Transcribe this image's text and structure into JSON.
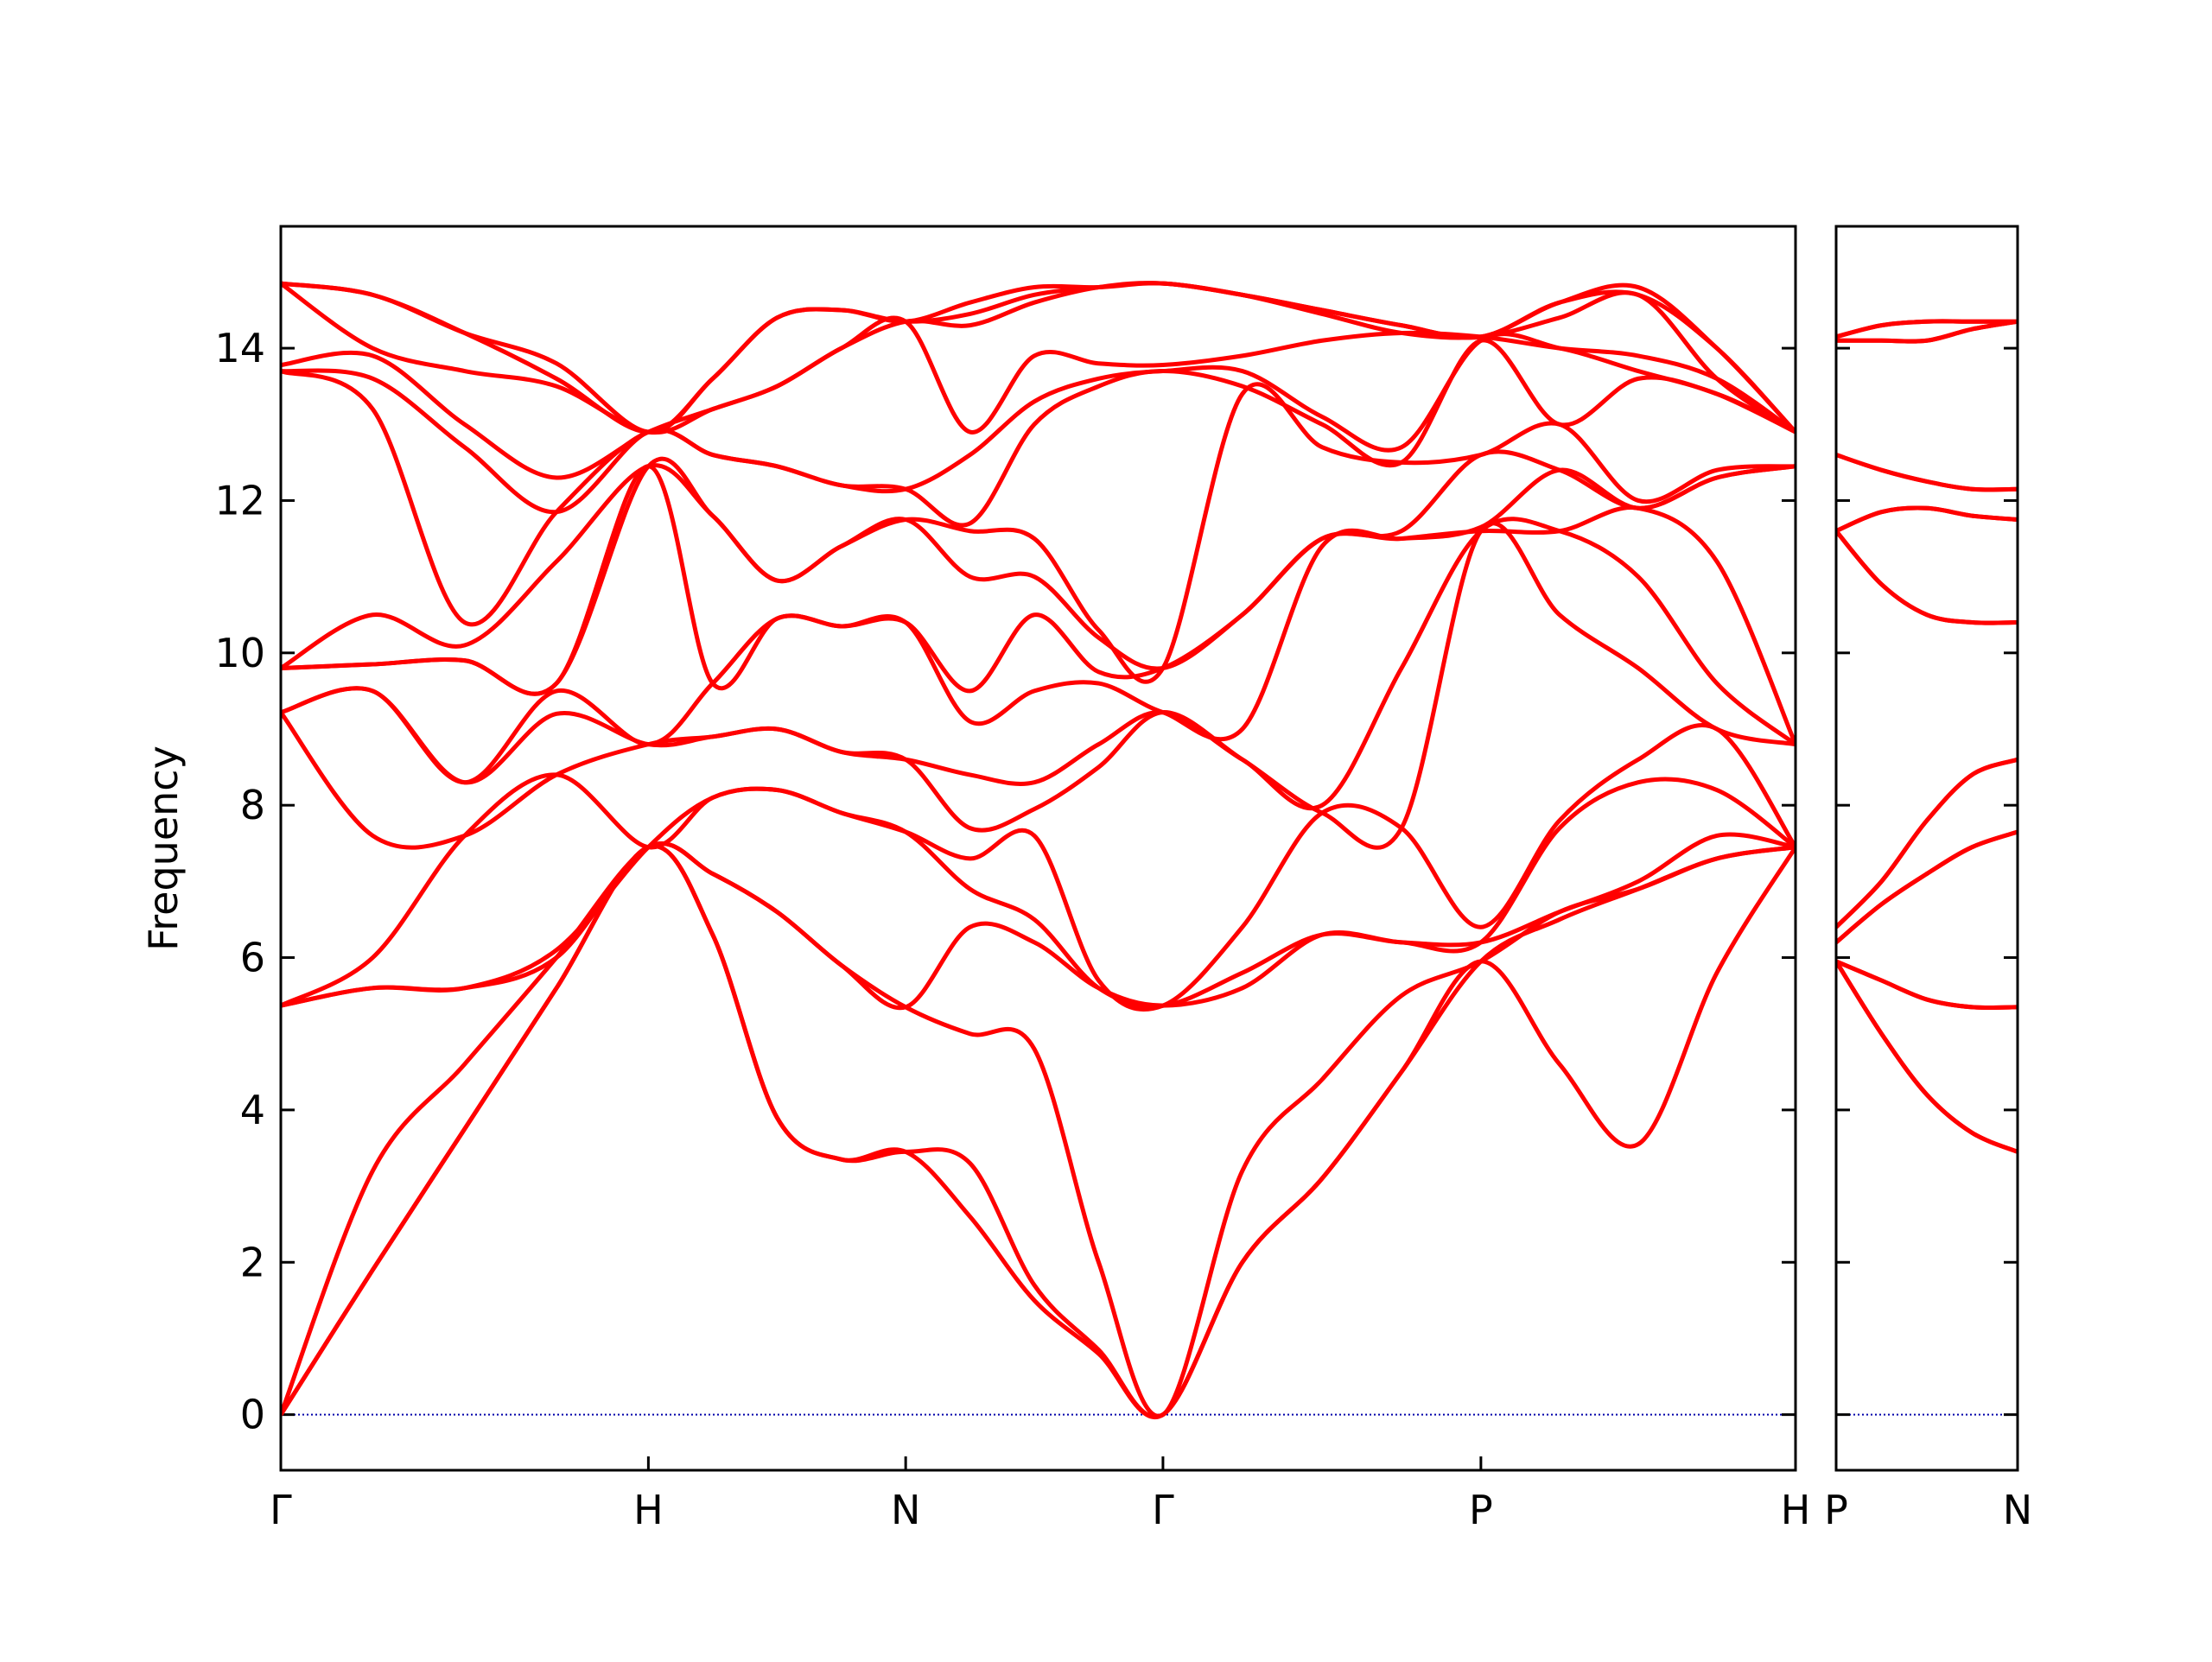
{
  "chart_data": [
    {
      "type": "line",
      "ylabel": "Frequency",
      "color": "#ff0000",
      "zero_line_color": "#0000aa",
      "ytick_labels": true,
      "x": [
        0,
        0.25,
        0.5,
        0.75,
        1.0,
        1.175,
        1.35,
        1.525,
        1.7,
        1.875,
        2.05,
        2.225,
        2.4,
        2.616,
        2.833,
        3.049,
        3.265,
        3.479,
        3.693,
        3.907,
        4.121
      ],
      "xlim": [
        0,
        4.121
      ],
      "xticks": [
        {
          "value": 0,
          "label": "Γ"
        },
        {
          "value": 1.0,
          "label": "H"
        },
        {
          "value": 1.7,
          "label": "N"
        },
        {
          "value": 2.4,
          "label": "Γ"
        },
        {
          "value": 3.265,
          "label": "P"
        },
        {
          "value": 4.121,
          "label": "H"
        }
      ],
      "ylim": [
        -0.73,
        15.6
      ],
      "yticks": [
        0,
        2,
        4,
        6,
        8,
        10,
        12,
        14
      ],
      "series": [
        {
          "values": [
            0,
            1.9,
            3.75,
            5.6,
            7.45,
            6.3,
            3.9,
            3.35,
            3.45,
            2.6,
            1.5,
            0.8,
            0,
            2.0,
            3.1,
            4.5,
            5.95,
            4.6,
            3.55,
            5.8,
            7.45
          ]
        },
        {
          "values": [
            0,
            1.9,
            3.75,
            5.6,
            7.45,
            6.3,
            3.9,
            3.35,
            3.45,
            3.3,
            1.7,
            0.85,
            0,
            2.0,
            3.1,
            4.5,
            5.95,
            6.5,
            6.9,
            7.3,
            7.45
          ]
        },
        {
          "values": [
            0,
            3.2,
            4.6,
            6.0,
            7.45,
            7.1,
            6.6,
            5.9,
            5.35,
            5.0,
            4.8,
            2.0,
            0,
            3.2,
            4.4,
            5.5,
            5.95,
            6.6,
            6.9,
            7.3,
            7.45
          ]
        },
        {
          "values": [
            5.37,
            5.6,
            5.6,
            6.0,
            7.45,
            7.1,
            6.6,
            5.9,
            5.35,
            6.4,
            6.2,
            5.6,
            5.37,
            5.6,
            6.3,
            6.2,
            6.2,
            6.6,
            7.0,
            7.6,
            7.45
          ]
        },
        {
          "values": [
            5.37,
            5.6,
            5.6,
            6.1,
            7.45,
            8.1,
            8.2,
            7.9,
            7.65,
            6.9,
            6.5,
            5.6,
            5.37,
            5.8,
            6.3,
            6.2,
            6.2,
            7.7,
            8.3,
            8.2,
            7.45
          ]
        },
        {
          "values": [
            5.37,
            6.0,
            7.6,
            8.4,
            7.45,
            8.1,
            8.2,
            7.9,
            7.65,
            7.3,
            7.6,
            5.7,
            5.37,
            6.4,
            7.9,
            7.7,
            6.4,
            7.8,
            8.6,
            9.0,
            7.45
          ]
        },
        {
          "values": [
            9.22,
            7.6,
            7.6,
            8.4,
            8.8,
            8.9,
            9.0,
            8.7,
            8.6,
            7.7,
            7.95,
            8.5,
            9.22,
            8.6,
            7.9,
            7.7,
            11.6,
            10.5,
            9.8,
            9.0,
            8.8
          ]
        },
        {
          "values": [
            9.22,
            9.5,
            8.3,
            9.2,
            8.8,
            8.9,
            9.0,
            8.7,
            8.6,
            8.4,
            8.3,
            8.8,
            9.22,
            8.6,
            8.0,
            9.8,
            11.6,
            11.6,
            11.0,
            9.6,
            8.8
          ]
        },
        {
          "values": [
            9.22,
            9.5,
            8.3,
            9.5,
            8.8,
            9.6,
            10.45,
            10.35,
            10.4,
            9.1,
            9.5,
            9.6,
            9.22,
            9.0,
            11.4,
            11.5,
            11.6,
            11.6,
            11.9,
            11.2,
            8.8
          ]
        },
        {
          "values": [
            9.8,
            9.85,
            9.9,
            9.6,
            12.45,
            9.6,
            10.45,
            10.35,
            10.4,
            9.5,
            10.5,
            9.75,
            9.8,
            10.5,
            11.5,
            11.5,
            11.65,
            12.4,
            11.9,
            12.3,
            12.45
          ]
        },
        {
          "values": [
            9.8,
            9.85,
            9.9,
            9.6,
            12.45,
            11.8,
            10.95,
            11.4,
            11.75,
            11.0,
            11.0,
            10.2,
            9.8,
            10.5,
            11.5,
            11.6,
            12.6,
            12.4,
            11.9,
            12.3,
            12.45
          ]
        },
        {
          "values": [
            9.8,
            10.5,
            10.1,
            11.2,
            12.45,
            11.8,
            10.95,
            11.4,
            11.75,
            11.6,
            11.5,
            10.3,
            9.8,
            13.4,
            12.7,
            12.5,
            12.6,
            13.0,
            12.0,
            12.4,
            12.45
          ]
        },
        {
          "values": [
            13.7,
            13.2,
            10.4,
            11.85,
            12.9,
            12.6,
            12.45,
            12.2,
            12.15,
            11.7,
            13.0,
            13.5,
            13.7,
            13.5,
            13.0,
            12.5,
            14.1,
            13.0,
            13.6,
            13.4,
            12.9
          ]
        },
        {
          "values": [
            13.7,
            13.6,
            12.7,
            11.85,
            12.9,
            12.6,
            12.45,
            12.2,
            12.15,
            12.6,
            13.3,
            13.6,
            13.7,
            13.7,
            13.1,
            12.7,
            14.1,
            14.0,
            13.7,
            13.4,
            12.9
          ]
        },
        {
          "values": [
            13.78,
            13.9,
            13.0,
            12.3,
            12.9,
            13.2,
            13.5,
            14.0,
            14.35,
            12.9,
            13.9,
            13.8,
            13.78,
            13.9,
            14.1,
            14.2,
            14.15,
            14.0,
            13.9,
            13.6,
            12.9
          ]
        },
        {
          "values": [
            14.85,
            14.0,
            13.7,
            13.5,
            12.9,
            13.2,
            13.5,
            14.0,
            14.35,
            14.3,
            14.6,
            14.8,
            14.85,
            14.7,
            14.45,
            14.2,
            14.15,
            14.4,
            14.7,
            13.6,
            12.9
          ]
        },
        {
          "values": [
            14.85,
            14.7,
            14.2,
            13.6,
            12.9,
            13.6,
            14.4,
            14.5,
            14.35,
            14.45,
            14.7,
            14.8,
            14.85,
            14.7,
            14.5,
            14.3,
            14.15,
            14.6,
            14.7,
            14.0,
            12.9
          ]
        },
        {
          "values": [
            14.85,
            14.7,
            14.2,
            13.8,
            12.9,
            13.6,
            14.4,
            14.5,
            14.35,
            14.6,
            14.8,
            14.8,
            14.85,
            14.7,
            14.5,
            14.3,
            14.15,
            14.6,
            14.8,
            14.0,
            12.9
          ]
        }
      ]
    },
    {
      "type": "line",
      "color": "#ff0000",
      "zero_line_color": "#0000aa",
      "ytick_labels": false,
      "x": [
        0,
        0.1235,
        0.247,
        0.37,
        0.494
      ],
      "xlim": [
        0,
        0.494
      ],
      "xticks": [
        {
          "value": 0,
          "label": "P"
        },
        {
          "value": 0.494,
          "label": "N"
        }
      ],
      "ylim": [
        -0.73,
        15.6
      ],
      "yticks": [
        0,
        2,
        4,
        6,
        8,
        10,
        12,
        14
      ],
      "series": [
        {
          "values": [
            5.95,
            5.0,
            4.2,
            3.7,
            3.45
          ]
        },
        {
          "values": [
            5.95,
            5.0,
            4.2,
            3.7,
            3.45
          ]
        },
        {
          "values": [
            5.95,
            5.7,
            5.45,
            5.35,
            5.35
          ]
        },
        {
          "values": [
            5.95,
            5.7,
            5.45,
            5.35,
            5.35
          ]
        },
        {
          "values": [
            6.2,
            6.7,
            7.1,
            7.45,
            7.65
          ]
        },
        {
          "values": [
            6.2,
            6.7,
            7.1,
            7.45,
            7.65
          ]
        },
        {
          "values": [
            6.4,
            7.0,
            7.8,
            8.4,
            8.6
          ]
        },
        {
          "values": [
            6.4,
            7.0,
            7.8,
            8.4,
            8.6
          ]
        },
        {
          "values": [
            11.6,
            10.9,
            10.5,
            10.4,
            10.4
          ]
        },
        {
          "values": [
            11.6,
            10.9,
            10.5,
            10.4,
            10.4
          ]
        },
        {
          "values": [
            11.6,
            11.85,
            11.9,
            11.8,
            11.75
          ]
        },
        {
          "values": [
            11.6,
            11.85,
            11.9,
            11.8,
            11.75
          ]
        },
        {
          "values": [
            12.6,
            12.4,
            12.25,
            12.15,
            12.15
          ]
        },
        {
          "values": [
            12.6,
            12.4,
            12.25,
            12.15,
            12.15
          ]
        },
        {
          "values": [
            14.1,
            14.1,
            14.1,
            14.25,
            14.35
          ]
        },
        {
          "values": [
            14.1,
            14.1,
            14.1,
            14.25,
            14.35
          ]
        },
        {
          "values": [
            14.15,
            14.3,
            14.35,
            14.35,
            14.35
          ]
        },
        {
          "values": [
            14.15,
            14.3,
            14.35,
            14.35,
            14.35
          ]
        }
      ]
    }
  ]
}
